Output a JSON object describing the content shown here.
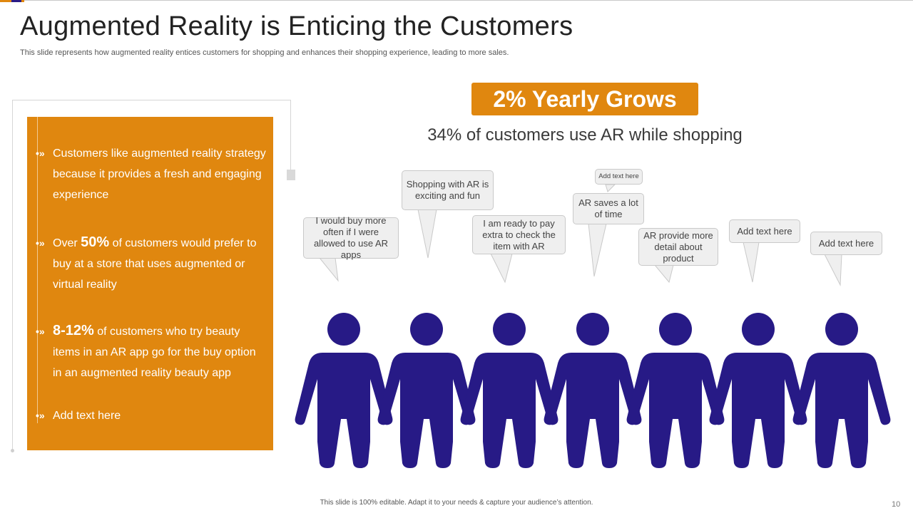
{
  "slide": {
    "title": "Augmented Reality is Enticing the Customers",
    "subtitle": "This slide represents how augmented reality entices customers for shopping and enhances their shopping experience, leading to more sales.",
    "footer": "This slide is 100% editable.  Adapt it to your needs & capture your audience’s attention.",
    "page_number": "10"
  },
  "panel": {
    "bullet_glyph": "•»",
    "items": [
      {
        "text": "Customers like augmented reality strategy because it provides a fresh and engaging experience"
      },
      {
        "prefix": "Over ",
        "highlight": "50%",
        "suffix": " of customers would prefer to buy at a store that uses augmented or virtual reality"
      },
      {
        "highlight": "8-12%",
        "suffix": " of customers who try beauty items in an AR app go for the buy option in an augmented reality beauty app"
      },
      {
        "text": "Add text here"
      }
    ]
  },
  "banner": {
    "label": "2% Yearly Grows"
  },
  "stat": {
    "label": "34% of customers use AR while shopping"
  },
  "bubbles": [
    "I would buy more often if I were allowed to use AR apps",
    "Shopping with AR is exciting and fun",
    "I am ready to pay extra to check the item with AR",
    "AR saves a lot of time",
    "Add text here",
    "AR provide more detail about product",
    "Add text here",
    "Add text here"
  ],
  "colors": {
    "accent": "#E0870F",
    "figure": "#271A86",
    "bubble_fill": "#EFEFEF"
  }
}
